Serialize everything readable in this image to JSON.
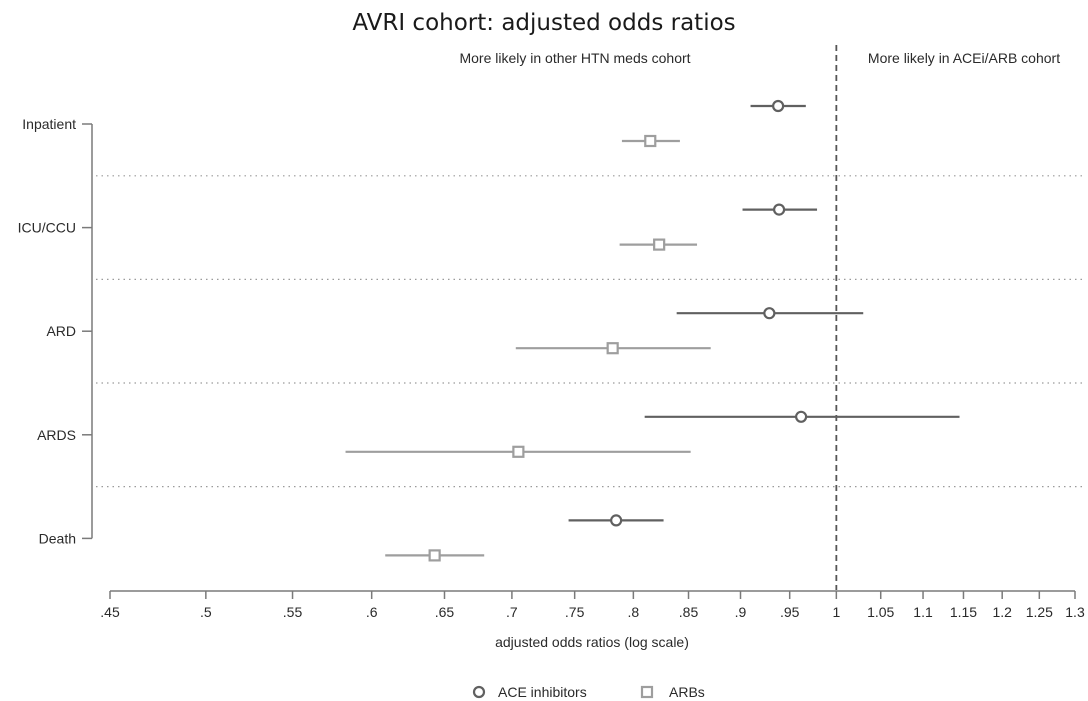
{
  "chart_data": {
    "type": "scatter",
    "title": "AVRI cohort: adjusted odds ratios",
    "xlabel": "adjusted odds ratios (log scale)",
    "x_scale": "log",
    "xlim": [
      0.45,
      1.3
    ],
    "x_ticks": [
      0.45,
      0.5,
      0.55,
      0.6,
      0.65,
      0.7,
      0.75,
      0.8,
      0.85,
      0.9,
      0.95,
      1,
      1.05,
      1.1,
      1.15,
      1.2,
      1.25,
      1.3
    ],
    "x_tick_labels": [
      ".45",
      ".5",
      ".55",
      ".6",
      ".65",
      ".7",
      ".75",
      ".8",
      ".85",
      ".9",
      ".95",
      "1",
      "1.05",
      "1.1",
      "1.15",
      "1.2",
      "1.25",
      "1.3"
    ],
    "reference_line": 1,
    "annotations": {
      "left": "More likely in other HTN meds cohort",
      "right": "More likely in ACEi/ARB cohort"
    },
    "categories": [
      "Inpatient",
      "ICU/CCU",
      "ARD",
      "ARDS",
      "Death"
    ],
    "series": [
      {
        "name": "ACE inhibitors",
        "marker": "circle",
        "color": "#606060",
        "values": [
          0.938,
          0.939,
          0.929,
          0.962,
          0.785
        ],
        "lower": [
          0.91,
          0.902,
          0.839,
          0.81,
          0.745
        ],
        "upper": [
          0.967,
          0.979,
          1.03,
          1.145,
          0.827
        ]
      },
      {
        "name": "ARBs",
        "marker": "square",
        "color": "#9e9e9e",
        "values": [
          0.815,
          0.823,
          0.782,
          0.705,
          0.643
        ],
        "lower": [
          0.79,
          0.788,
          0.703,
          0.583,
          0.609
        ],
        "upper": [
          0.842,
          0.858,
          0.871,
          0.852,
          0.679
        ]
      }
    ],
    "legend_position": "bottom",
    "grid": false
  }
}
